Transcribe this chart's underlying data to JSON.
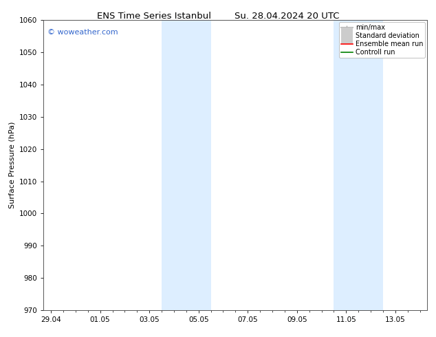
{
  "title_left": "ENS Time Series Istanbul",
  "title_right": "Su. 28.04.2024 20 UTC",
  "ylabel": "Surface Pressure (hPa)",
  "ylim": [
    970,
    1060
  ],
  "yticks": [
    970,
    980,
    990,
    1000,
    1010,
    1020,
    1030,
    1040,
    1050,
    1060
  ],
  "xtick_labels": [
    "29.04",
    "01.05",
    "03.05",
    "05.05",
    "07.05",
    "09.05",
    "11.05",
    "13.05"
  ],
  "xtick_offsets": [
    0,
    2,
    4,
    6,
    8,
    10,
    12,
    14
  ],
  "xlim": [
    -0.3,
    15.3
  ],
  "watermark": "© woweather.com",
  "watermark_color": "#3366cc",
  "bg_color": "#ffffff",
  "plot_bg_color": "#ffffff",
  "shaded_bands": [
    {
      "x_start": 4.5,
      "x_end": 6.5,
      "color": "#ddeeff"
    },
    {
      "x_start": 11.5,
      "x_end": 13.5,
      "color": "#ddeeff"
    }
  ],
  "legend_items": [
    {
      "label": "min/max",
      "color": "#aaaaaa",
      "lw": 1.2,
      "style": "line_with_cap"
    },
    {
      "label": "Standard deviation",
      "color": "#cccccc",
      "lw": 5,
      "style": "thick"
    },
    {
      "label": "Ensemble mean run",
      "color": "#ff0000",
      "lw": 1.2,
      "style": "line"
    },
    {
      "label": "Controll run",
      "color": "#008000",
      "lw": 1.2,
      "style": "line"
    }
  ],
  "title_fontsize": 9.5,
  "axis_fontsize": 8,
  "tick_fontsize": 7.5,
  "legend_fontsize": 7,
  "watermark_fontsize": 8
}
